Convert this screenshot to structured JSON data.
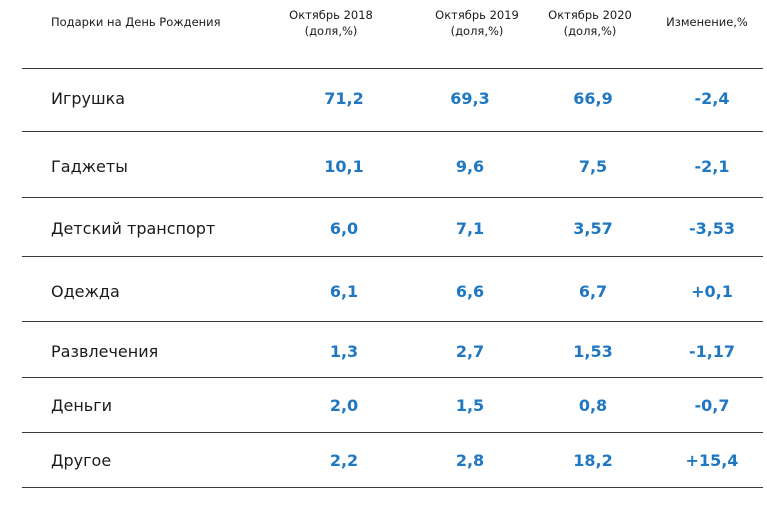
{
  "header": {
    "category": "Подарки на День Рождения",
    "col1_line1": "Октябрь 2018",
    "col1_line2": "(доля,%)",
    "col2_line1": "Октябрь 2019",
    "col2_line2": "(доля,%)",
    "col3_line1": "Октябрь 2020",
    "col3_line2": "(доля,%)",
    "col4": "Изменение,%"
  },
  "chart_data": {
    "type": "table",
    "columns": [
      "Подарки на День Рождения",
      "Октябрь 2018 (доля,%)",
      "Октябрь 2019 (доля,%)",
      "Октябрь 2020 (доля,%)",
      "Изменение,%"
    ],
    "rows": [
      {
        "label": "Игрушка",
        "v2018": "71,2",
        "v2019": "69,3",
        "v2020": "66,9",
        "change": "-2,4"
      },
      {
        "label": "Гаджеты",
        "v2018": "10,1",
        "v2019": "9,6",
        "v2020": "7,5",
        "change": "-2,1"
      },
      {
        "label": "Детский транспорт",
        "v2018": "6,0",
        "v2019": "7,1",
        "v2020": "3,57",
        "change": "-3,53"
      },
      {
        "label": "Одежда",
        "v2018": "6,1",
        "v2019": "6,6",
        "v2020": "6,7",
        "change": "+0,1"
      },
      {
        "label": "Развлечения",
        "v2018": "1,3",
        "v2019": "2,7",
        "v2020": "1,53",
        "change": "-1,17"
      },
      {
        "label": "Деньги",
        "v2018": "2,0",
        "v2019": "1,5",
        "v2020": "0,8",
        "change": "-0,7"
      },
      {
        "label": "Другое",
        "v2018": "2,2",
        "v2019": "2,8",
        "v2020": "18,2",
        "change": "+15,4"
      }
    ]
  },
  "colors": {
    "value_text": "#1f78c1",
    "label_text": "#1a1a1a",
    "rule": "#3a3a3a"
  }
}
